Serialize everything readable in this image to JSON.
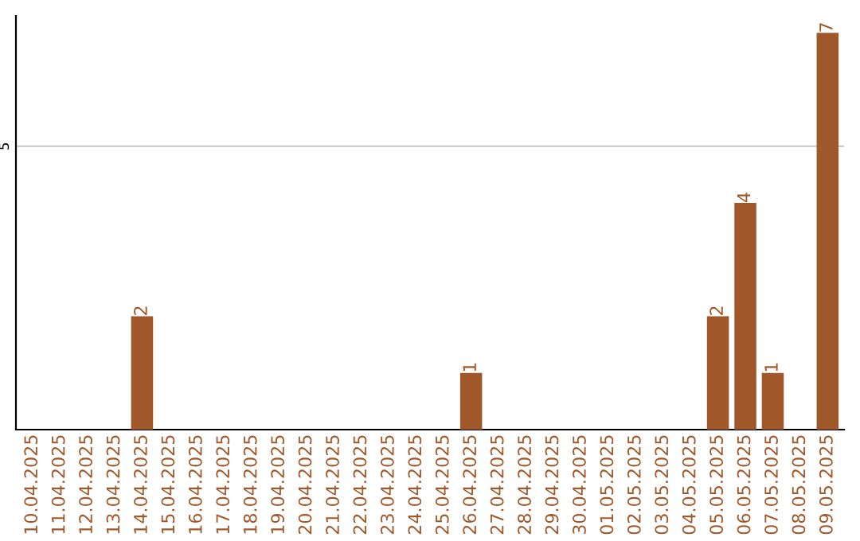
{
  "chart_data": {
    "type": "bar",
    "categories": [
      "10.04.2025",
      "11.04.2025",
      "12.04.2025",
      "13.04.2025",
      "14.04.2025",
      "15.04.2025",
      "16.04.2025",
      "17.04.2025",
      "18.04.2025",
      "19.04.2025",
      "20.04.2025",
      "21.04.2025",
      "22.04.2025",
      "23.04.2025",
      "24.04.2025",
      "25.04.2025",
      "26.04.2025",
      "27.04.2025",
      "28.04.2025",
      "29.04.2025",
      "30.04.2025",
      "01.05.2025",
      "02.05.2025",
      "03.05.2025",
      "04.05.2025",
      "05.05.2025",
      "06.05.2025",
      "07.05.2025",
      "08.05.2025",
      "09.05.2025"
    ],
    "values": [
      0,
      0,
      0,
      0,
      2,
      0,
      0,
      0,
      0,
      0,
      0,
      0,
      0,
      0,
      0,
      0,
      1,
      0,
      0,
      0,
      0,
      0,
      0,
      0,
      0,
      2,
      4,
      1,
      0,
      7
    ],
    "value_labels": [
      null,
      null,
      null,
      null,
      "2",
      null,
      null,
      null,
      null,
      null,
      null,
      null,
      null,
      null,
      null,
      null,
      "1",
      null,
      null,
      null,
      null,
      null,
      null,
      null,
      null,
      "2",
      "4",
      "1",
      null,
      "7"
    ],
    "color": "#a0582a",
    "ylim": [
      0,
      7.3
    ],
    "yticks": [
      5
    ],
    "grid": "y",
    "legend": false
  }
}
